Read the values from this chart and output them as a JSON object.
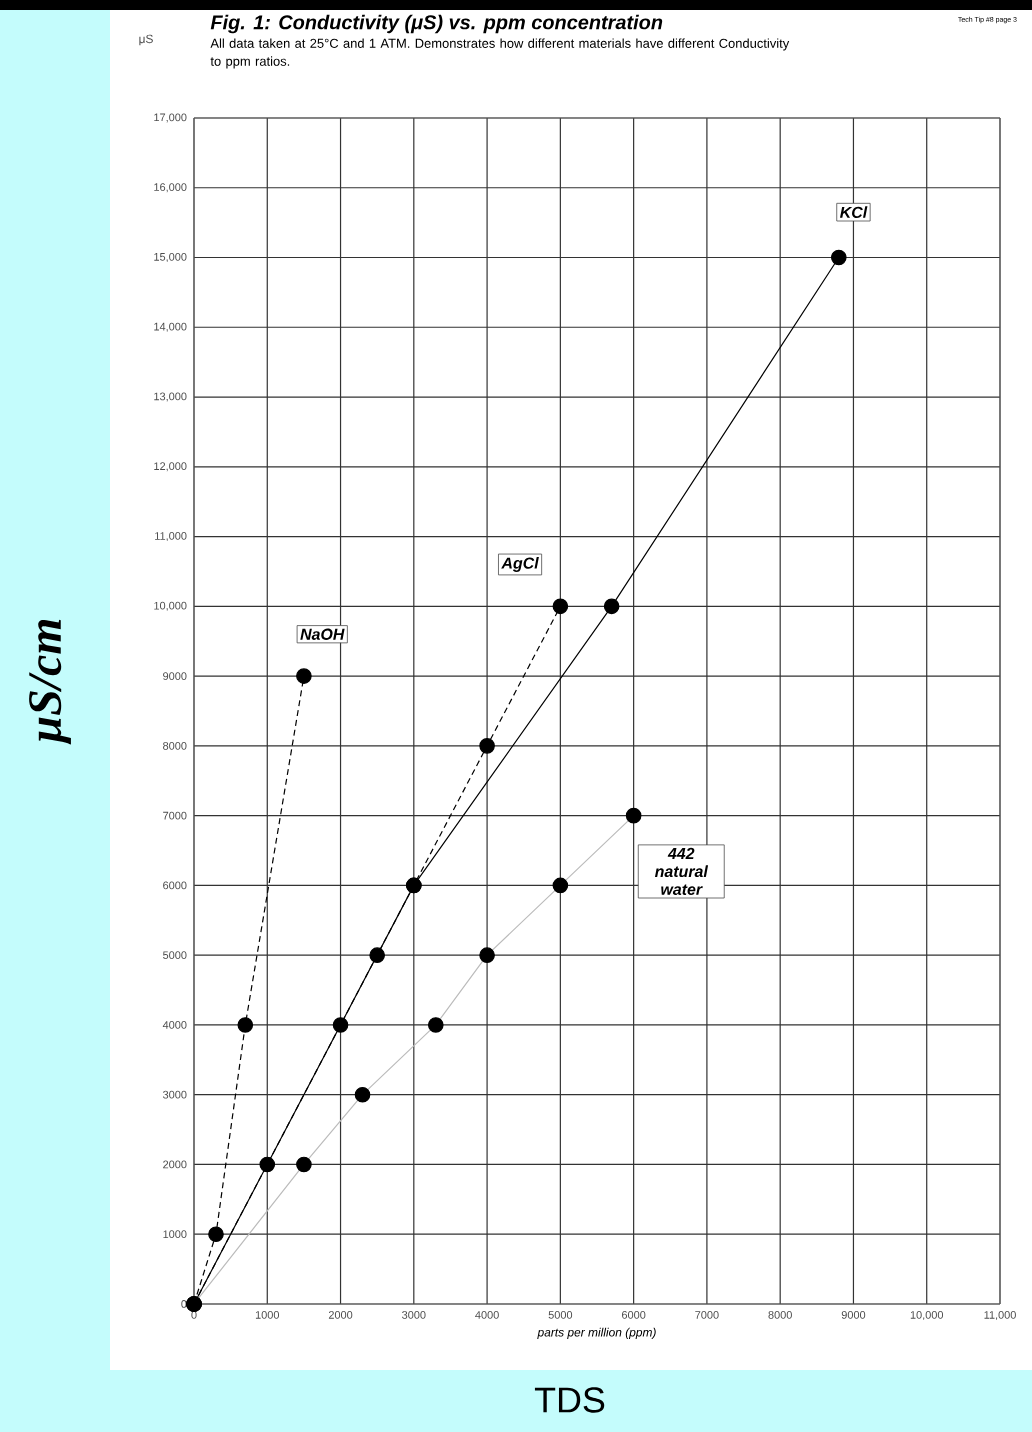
{
  "chart_data": {
    "type": "line",
    "title": "Fig. 1: Conductivity (μS) vs. ppm concentration",
    "subtitle": "All data taken at 25°C and 1 ATM. Demonstrates how different materials have different Conductivity to ppm ratios.",
    "xlabel": "parts per million (ppm)",
    "ylabel": "μS/cm",
    "annotations": [
      "μS",
      "TDS",
      "Tech Tip #8 page 3"
    ],
    "xlim": [
      0,
      11000
    ],
    "ylim": [
      0,
      17000
    ],
    "xticks": [
      0,
      1000,
      2000,
      3000,
      4000,
      5000,
      6000,
      7000,
      8000,
      9000,
      {
        "value": 10000,
        "label": "10,000"
      },
      {
        "value": 11000,
        "label": "11,000"
      }
    ],
    "yticks": [
      0,
      1000,
      2000,
      3000,
      4000,
      5000,
      6000,
      7000,
      8000,
      9000,
      {
        "value": 10000,
        "label": "10,000"
      },
      {
        "value": 11000,
        "label": "11,000"
      },
      {
        "value": 12000,
        "label": "12,000"
      },
      {
        "value": 13000,
        "label": "13,000"
      },
      {
        "value": 14000,
        "label": "14,000"
      },
      {
        "value": 15000,
        "label": "15,000"
      },
      {
        "value": 16000,
        "label": "16,000"
      },
      {
        "value": 17000,
        "label": "17,000"
      }
    ],
    "grid": true,
    "marker": "circle",
    "legend": false,
    "series": [
      {
        "name": "NaOH",
        "color": "#000000",
        "line_style": "dashed",
        "x": [
          0,
          300,
          700,
          1500
        ],
        "values": [
          0,
          1000,
          4000,
          9000
        ]
      },
      {
        "name": "AgCl",
        "color": "#000000",
        "line_style": "dashed",
        "x": [
          0,
          1000,
          2000,
          2500,
          3000,
          4000,
          5000
        ],
        "values": [
          0,
          2000,
          4000,
          5000,
          6000,
          8000,
          10000
        ]
      },
      {
        "name": "KCl",
        "color": "#000000",
        "line_style": "solid",
        "x": [
          0,
          3000,
          5700,
          8800
        ],
        "values": [
          0,
          6000,
          10000,
          15000
        ]
      },
      {
        "name": "442 natural water",
        "color": "#bbbbbb",
        "line_style": "solid",
        "x": [
          0,
          1500,
          2300,
          3300,
          4000,
          5000,
          6000
        ],
        "values": [
          0,
          2000,
          3000,
          4000,
          5000,
          6000,
          7000
        ]
      }
    ]
  }
}
